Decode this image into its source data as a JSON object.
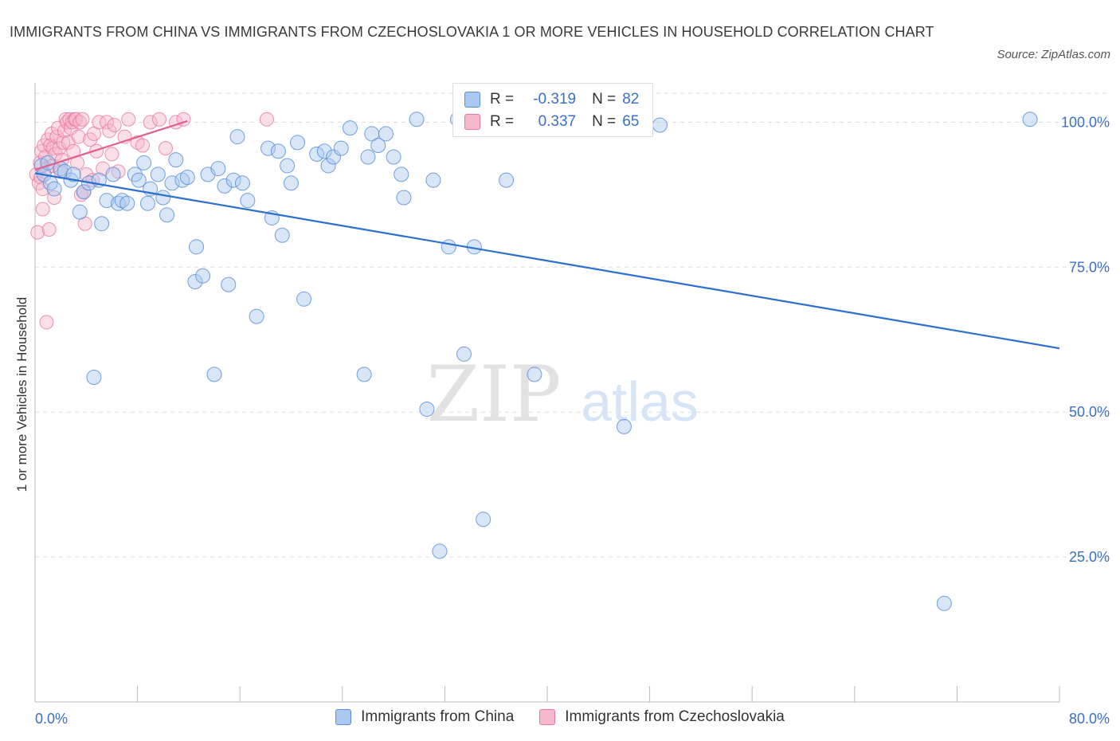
{
  "title": "IMMIGRANTS FROM CHINA VS IMMIGRANTS FROM CZECHOSLOVAKIA 1 OR MORE VEHICLES IN HOUSEHOLD CORRELATION CHART",
  "source": "Source: ZipAtlas.com",
  "watermark": {
    "zip": "ZIP",
    "atlas": "atlas"
  },
  "legend": {
    "series1": {
      "r_label": "R =",
      "r_value": "-0.319",
      "n_label": "N =",
      "n_value": "82"
    },
    "series2": {
      "r_label": "R =",
      "r_value": "0.337",
      "n_label": "N =",
      "n_value": "65"
    }
  },
  "bottom_legend": {
    "china": "Immigrants from China",
    "czech": "Immigrants from Czechoslovakia"
  },
  "colors": {
    "china_fill": "#a9c8f0",
    "china_stroke": "#5b8fd8",
    "china_line": "#2b6fcf",
    "czech_fill": "#f6b9cb",
    "czech_stroke": "#e8789c",
    "czech_line": "#e0608a",
    "axis_text": "#3b6fc6",
    "grid": "#dddddd"
  },
  "chart_data": {
    "type": "scatter",
    "title": "IMMIGRANTS FROM CHINA VS IMMIGRANTS FROM CZECHOSLOVAKIA 1 OR MORE VEHICLES IN HOUSEHOLD CORRELATION CHART",
    "xlabel": "",
    "ylabel": "1 or more Vehicles in Household",
    "xlim": [
      0,
      80
    ],
    "ylim": [
      0,
      105
    ],
    "x_tick_labels": [
      "0.0%",
      "80.0%"
    ],
    "y_ticks": [
      25,
      50,
      75,
      100
    ],
    "y_tick_labels": [
      "25.0%",
      "50.0%",
      "75.0%",
      "100.0%"
    ],
    "grid": true,
    "legend_position": "top-center",
    "series": [
      {
        "name": "Immigrants from China",
        "r": -0.319,
        "n": 82,
        "trend": {
          "x": [
            0,
            80
          ],
          "y": [
            91.2,
            61.0
          ]
        },
        "points": [
          [
            0.5,
            92.5
          ],
          [
            0.7,
            91.0
          ],
          [
            1.0,
            93.0
          ],
          [
            1.2,
            89.5
          ],
          [
            1.5,
            88.5
          ],
          [
            2.0,
            92.0
          ],
          [
            2.3,
            91.5
          ],
          [
            2.8,
            90.0
          ],
          [
            3.0,
            91.0
          ],
          [
            3.5,
            84.5
          ],
          [
            3.8,
            88.0
          ],
          [
            4.2,
            89.5
          ],
          [
            4.6,
            56.0
          ],
          [
            5.0,
            90.0
          ],
          [
            5.2,
            82.5
          ],
          [
            5.6,
            86.5
          ],
          [
            6.1,
            91.0
          ],
          [
            6.5,
            86.0
          ],
          [
            6.8,
            86.5
          ],
          [
            7.2,
            86.0
          ],
          [
            7.8,
            91.0
          ],
          [
            8.1,
            90.0
          ],
          [
            8.5,
            93.0
          ],
          [
            8.8,
            86.0
          ],
          [
            9.0,
            88.5
          ],
          [
            9.6,
            91.0
          ],
          [
            10.0,
            87.0
          ],
          [
            10.3,
            84.0
          ],
          [
            10.7,
            89.5
          ],
          [
            11.0,
            93.5
          ],
          [
            11.5,
            90.0
          ],
          [
            11.9,
            90.5
          ],
          [
            12.6,
            78.5
          ],
          [
            12.5,
            72.5
          ],
          [
            13.1,
            73.5
          ],
          [
            13.5,
            91.0
          ],
          [
            14.0,
            56.5
          ],
          [
            14.3,
            92.0
          ],
          [
            14.8,
            89.0
          ],
          [
            15.1,
            72.0
          ],
          [
            15.5,
            90.0
          ],
          [
            15.8,
            97.5
          ],
          [
            16.2,
            89.5
          ],
          [
            16.6,
            86.5
          ],
          [
            17.3,
            66.5
          ],
          [
            18.2,
            95.5
          ],
          [
            18.5,
            83.5
          ],
          [
            19.0,
            95.0
          ],
          [
            19.3,
            80.5
          ],
          [
            19.7,
            92.5
          ],
          [
            20.0,
            89.5
          ],
          [
            20.5,
            96.5
          ],
          [
            21.0,
            69.5
          ],
          [
            22.0,
            94.5
          ],
          [
            22.6,
            95.0
          ],
          [
            22.9,
            92.5
          ],
          [
            23.3,
            94.0
          ],
          [
            23.9,
            95.5
          ],
          [
            24.6,
            99.0
          ],
          [
            25.7,
            56.5
          ],
          [
            26.0,
            94.0
          ],
          [
            26.3,
            98.0
          ],
          [
            26.8,
            96.0
          ],
          [
            27.4,
            98.0
          ],
          [
            28.0,
            94.0
          ],
          [
            28.6,
            91.0
          ],
          [
            28.8,
            87.0
          ],
          [
            29.8,
            100.5
          ],
          [
            30.6,
            50.5
          ],
          [
            31.1,
            90.0
          ],
          [
            31.6,
            26.0
          ],
          [
            32.3,
            78.5
          ],
          [
            33.0,
            100.5
          ],
          [
            33.5,
            60.0
          ],
          [
            34.3,
            78.5
          ],
          [
            35.0,
            31.5
          ],
          [
            36.8,
            90.0
          ],
          [
            39.0,
            56.5
          ],
          [
            46.0,
            47.5
          ],
          [
            48.8,
            99.5
          ],
          [
            71.0,
            17.0
          ],
          [
            77.7,
            100.5
          ]
        ]
      },
      {
        "name": "Immigrants from Czechoslovakia",
        "r": 0.337,
        "n": 65,
        "trend": {
          "x": [
            0,
            11.9
          ],
          "y": [
            91.8,
            100.2
          ]
        },
        "points": [
          [
            0.1,
            91.0
          ],
          [
            0.2,
            81.0
          ],
          [
            0.3,
            89.5
          ],
          [
            0.4,
            93.0
          ],
          [
            0.45,
            90.5
          ],
          [
            0.5,
            95.0
          ],
          [
            0.6,
            88.5
          ],
          [
            0.6,
            85.0
          ],
          [
            0.7,
            96.0
          ],
          [
            0.8,
            94.0
          ],
          [
            0.9,
            92.0
          ],
          [
            0.9,
            65.5
          ],
          [
            1.0,
            97.0
          ],
          [
            1.1,
            81.5
          ],
          [
            1.2,
            96.0
          ],
          [
            1.3,
            98.0
          ],
          [
            1.35,
            92.5
          ],
          [
            1.4,
            95.5
          ],
          [
            1.5,
            87.0
          ],
          [
            1.6,
            94.5
          ],
          [
            1.7,
            97.5
          ],
          [
            1.8,
            99.0
          ],
          [
            1.9,
            95.5
          ],
          [
            2.0,
            91.5
          ],
          [
            2.1,
            93.5
          ],
          [
            2.2,
            96.5
          ],
          [
            2.3,
            98.5
          ],
          [
            2.4,
            100.5
          ],
          [
            2.5,
            100.0
          ],
          [
            2.6,
            96.5
          ],
          [
            2.7,
            100.5
          ],
          [
            2.8,
            99.0
          ],
          [
            2.9,
            100.0
          ],
          [
            3.0,
            95.0
          ],
          [
            3.1,
            100.5
          ],
          [
            3.2,
            100.5
          ],
          [
            3.3,
            93.0
          ],
          [
            3.4,
            97.5
          ],
          [
            3.5,
            100.0
          ],
          [
            3.6,
            87.5
          ],
          [
            3.7,
            100.5
          ],
          [
            3.8,
            88.0
          ],
          [
            3.9,
            82.5
          ],
          [
            4.0,
            91.0
          ],
          [
            4.3,
            97.0
          ],
          [
            4.5,
            90.0
          ],
          [
            4.6,
            98.0
          ],
          [
            4.8,
            95.0
          ],
          [
            5.0,
            100.0
          ],
          [
            5.3,
            92.0
          ],
          [
            5.6,
            100.0
          ],
          [
            5.8,
            98.5
          ],
          [
            6.0,
            94.5
          ],
          [
            6.2,
            99.5
          ],
          [
            6.5,
            91.5
          ],
          [
            7.0,
            97.5
          ],
          [
            7.3,
            100.5
          ],
          [
            8.0,
            96.5
          ],
          [
            8.4,
            96.0
          ],
          [
            9.0,
            100.0
          ],
          [
            9.7,
            100.5
          ],
          [
            10.2,
            95.5
          ],
          [
            11.0,
            100.0
          ],
          [
            11.6,
            100.5
          ],
          [
            18.1,
            100.5
          ]
        ]
      }
    ]
  }
}
